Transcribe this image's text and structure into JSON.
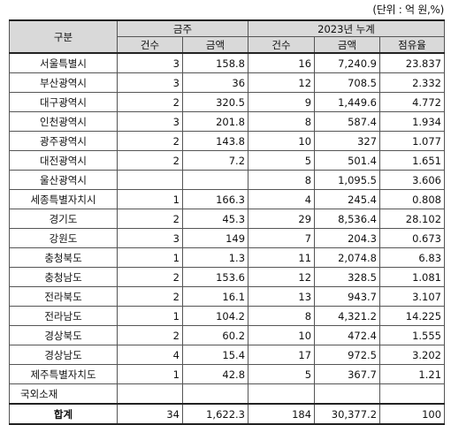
{
  "unit_note": "(단위 : 억 원,%)",
  "headers": {
    "category": "구분",
    "weekly": "금주",
    "cumulative": "2023년 누계",
    "weekly_count": "건수",
    "weekly_amount": "금액",
    "cum_count": "건수",
    "cum_amount": "금액",
    "cum_share": "점유율"
  },
  "rows": [
    {
      "region": "서울특별시",
      "wk_count": "3",
      "wk_amount": "158.8",
      "cum_count": "16",
      "cum_amount": "7,240.9",
      "share": "23.837"
    },
    {
      "region": "부산광역시",
      "wk_count": "3",
      "wk_amount": "36",
      "cum_count": "12",
      "cum_amount": "708.5",
      "share": "2.332"
    },
    {
      "region": "대구광역시",
      "wk_count": "2",
      "wk_amount": "320.5",
      "cum_count": "9",
      "cum_amount": "1,449.6",
      "share": "4.772"
    },
    {
      "region": "인천광역시",
      "wk_count": "3",
      "wk_amount": "201.8",
      "cum_count": "8",
      "cum_amount": "587.4",
      "share": "1.934"
    },
    {
      "region": "광주광역시",
      "wk_count": "2",
      "wk_amount": "143.8",
      "cum_count": "10",
      "cum_amount": "327",
      "share": "1.077"
    },
    {
      "region": "대전광역시",
      "wk_count": "2",
      "wk_amount": "7.2",
      "cum_count": "5",
      "cum_amount": "501.4",
      "share": "1.651"
    },
    {
      "region": "울산광역시",
      "wk_count": "",
      "wk_amount": "",
      "cum_count": "8",
      "cum_amount": "1,095.5",
      "share": "3.606"
    },
    {
      "region": "세종특별자치시",
      "wk_count": "1",
      "wk_amount": "166.3",
      "cum_count": "4",
      "cum_amount": "245.4",
      "share": "0.808"
    },
    {
      "region": "경기도",
      "wk_count": "2",
      "wk_amount": "45.3",
      "cum_count": "29",
      "cum_amount": "8,536.4",
      "share": "28.102"
    },
    {
      "region": "강원도",
      "wk_count": "3",
      "wk_amount": "149",
      "cum_count": "7",
      "cum_amount": "204.3",
      "share": "0.673"
    },
    {
      "region": "충청북도",
      "wk_count": "1",
      "wk_amount": "1.3",
      "cum_count": "11",
      "cum_amount": "2,074.8",
      "share": "6.83"
    },
    {
      "region": "충청남도",
      "wk_count": "2",
      "wk_amount": "153.6",
      "cum_count": "12",
      "cum_amount": "328.5",
      "share": "1.081"
    },
    {
      "region": "전라북도",
      "wk_count": "2",
      "wk_amount": "16.1",
      "cum_count": "13",
      "cum_amount": "943.7",
      "share": "3.107"
    },
    {
      "region": "전라남도",
      "wk_count": "1",
      "wk_amount": "104.2",
      "cum_count": "8",
      "cum_amount": "4,321.2",
      "share": "14.225"
    },
    {
      "region": "경상북도",
      "wk_count": "2",
      "wk_amount": "60.2",
      "cum_count": "10",
      "cum_amount": "472.4",
      "share": "1.555"
    },
    {
      "region": "경상남도",
      "wk_count": "4",
      "wk_amount": "15.4",
      "cum_count": "17",
      "cum_amount": "972.5",
      "share": "3.202"
    },
    {
      "region": "제주특별자치도",
      "wk_count": "1",
      "wk_amount": "42.8",
      "cum_count": "5",
      "cum_amount": "367.7",
      "share": "1.21"
    },
    {
      "region": "국외소재",
      "wk_count": "",
      "wk_amount": "",
      "cum_count": "",
      "cum_amount": "",
      "share": ""
    }
  ],
  "total": {
    "region": "합계",
    "wk_count": "34",
    "wk_amount": "1,622.3",
    "cum_count": "184",
    "cum_amount": "30,377.2",
    "share": "100"
  }
}
